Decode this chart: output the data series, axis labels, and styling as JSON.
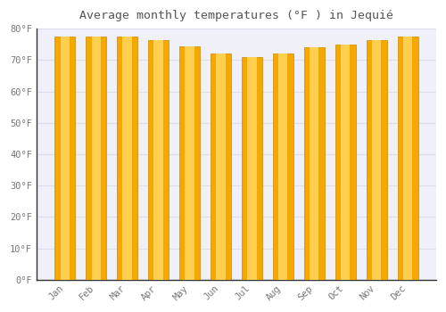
{
  "title": "Average monthly temperatures (°F ) in Jequié",
  "months": [
    "Jan",
    "Feb",
    "Mar",
    "Apr",
    "May",
    "Jun",
    "Jul",
    "Aug",
    "Sep",
    "Oct",
    "Nov",
    "Dec"
  ],
  "values": [
    77.5,
    77.5,
    77.5,
    76.5,
    74.5,
    72.0,
    71.0,
    72.0,
    74.0,
    75.0,
    76.5,
    77.5
  ],
  "bar_color_center": "#FFD050",
  "bar_color_edge": "#F5A800",
  "bar_edge_color": "#CC8800",
  "ylim": [
    0,
    80
  ],
  "yticks": [
    0,
    10,
    20,
    30,
    40,
    50,
    60,
    70,
    80
  ],
  "ytick_labels": [
    "0°F",
    "10°F",
    "20°F",
    "30°F",
    "40°F",
    "50°F",
    "60°F",
    "70°F",
    "80°F"
  ],
  "background_color": "#FFFFFF",
  "plot_bg_color": "#F0F0F8",
  "grid_color": "#DDDDEE",
  "font_color": "#777777",
  "title_color": "#555555",
  "bar_width": 0.65,
  "title_fontsize": 9.5,
  "tick_fontsize": 7.5
}
